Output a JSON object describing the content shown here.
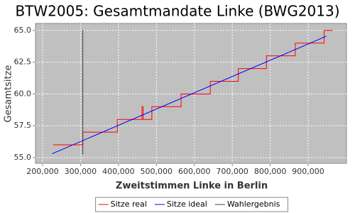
{
  "chart_data": {
    "type": "line",
    "title": "BTW2005: Gesamtmandate Linke (BWG2013)",
    "x_label": "Zweitstimmen Linke in Berlin",
    "y_label": "Gesamtsitze",
    "xlim": [
      181300,
      1001000
    ],
    "ylim": [
      54.55,
      65.55
    ],
    "xticks": [
      {
        "value": 200000,
        "label": "200,000"
      },
      {
        "value": 300000,
        "label": "300,000"
      },
      {
        "value": 400000,
        "label": "400,000"
      },
      {
        "value": 500000,
        "label": "500,000"
      },
      {
        "value": 600000,
        "label": "600,000"
      },
      {
        "value": 700000,
        "label": "700,000"
      },
      {
        "value": 800000,
        "label": "800,000"
      },
      {
        "value": 900000,
        "label": "900,000"
      }
    ],
    "yticks": [
      {
        "value": 55,
        "label": "55.0"
      },
      57.5,
      {
        "value": 60,
        "label": "60.0"
      },
      62.5,
      {
        "value": 65,
        "label": "65.0"
      }
    ],
    "grid": true,
    "legend": "bottom",
    "series": [
      {
        "name": "Sitze real",
        "color": "#ff0000",
        "x": [
          228000,
          306000,
          306000,
          397000,
          397000,
          462000,
          462000,
          465000,
          465000,
          488000,
          488000,
          565000,
          565000,
          642000,
          642000,
          716000,
          716000,
          790000,
          790000,
          866000,
          866000,
          942000,
          942000,
          964000
        ],
        "values": [
          56,
          56,
          57,
          57,
          58,
          58,
          59,
          59,
          58,
          58,
          59,
          59,
          60,
          60,
          61,
          61,
          62,
          62,
          63,
          63,
          64,
          64,
          65,
          65
        ]
      },
      {
        "name": "Sitze ideal",
        "color": "#0000ff",
        "x": [
          225000,
          948000
        ],
        "values": [
          55.3,
          64.55
        ]
      },
      {
        "name": "Wahlergebnis",
        "color": "#404040",
        "x": [
          306000,
          306000
        ],
        "values": [
          55.25,
          65.05
        ]
      }
    ]
  }
}
